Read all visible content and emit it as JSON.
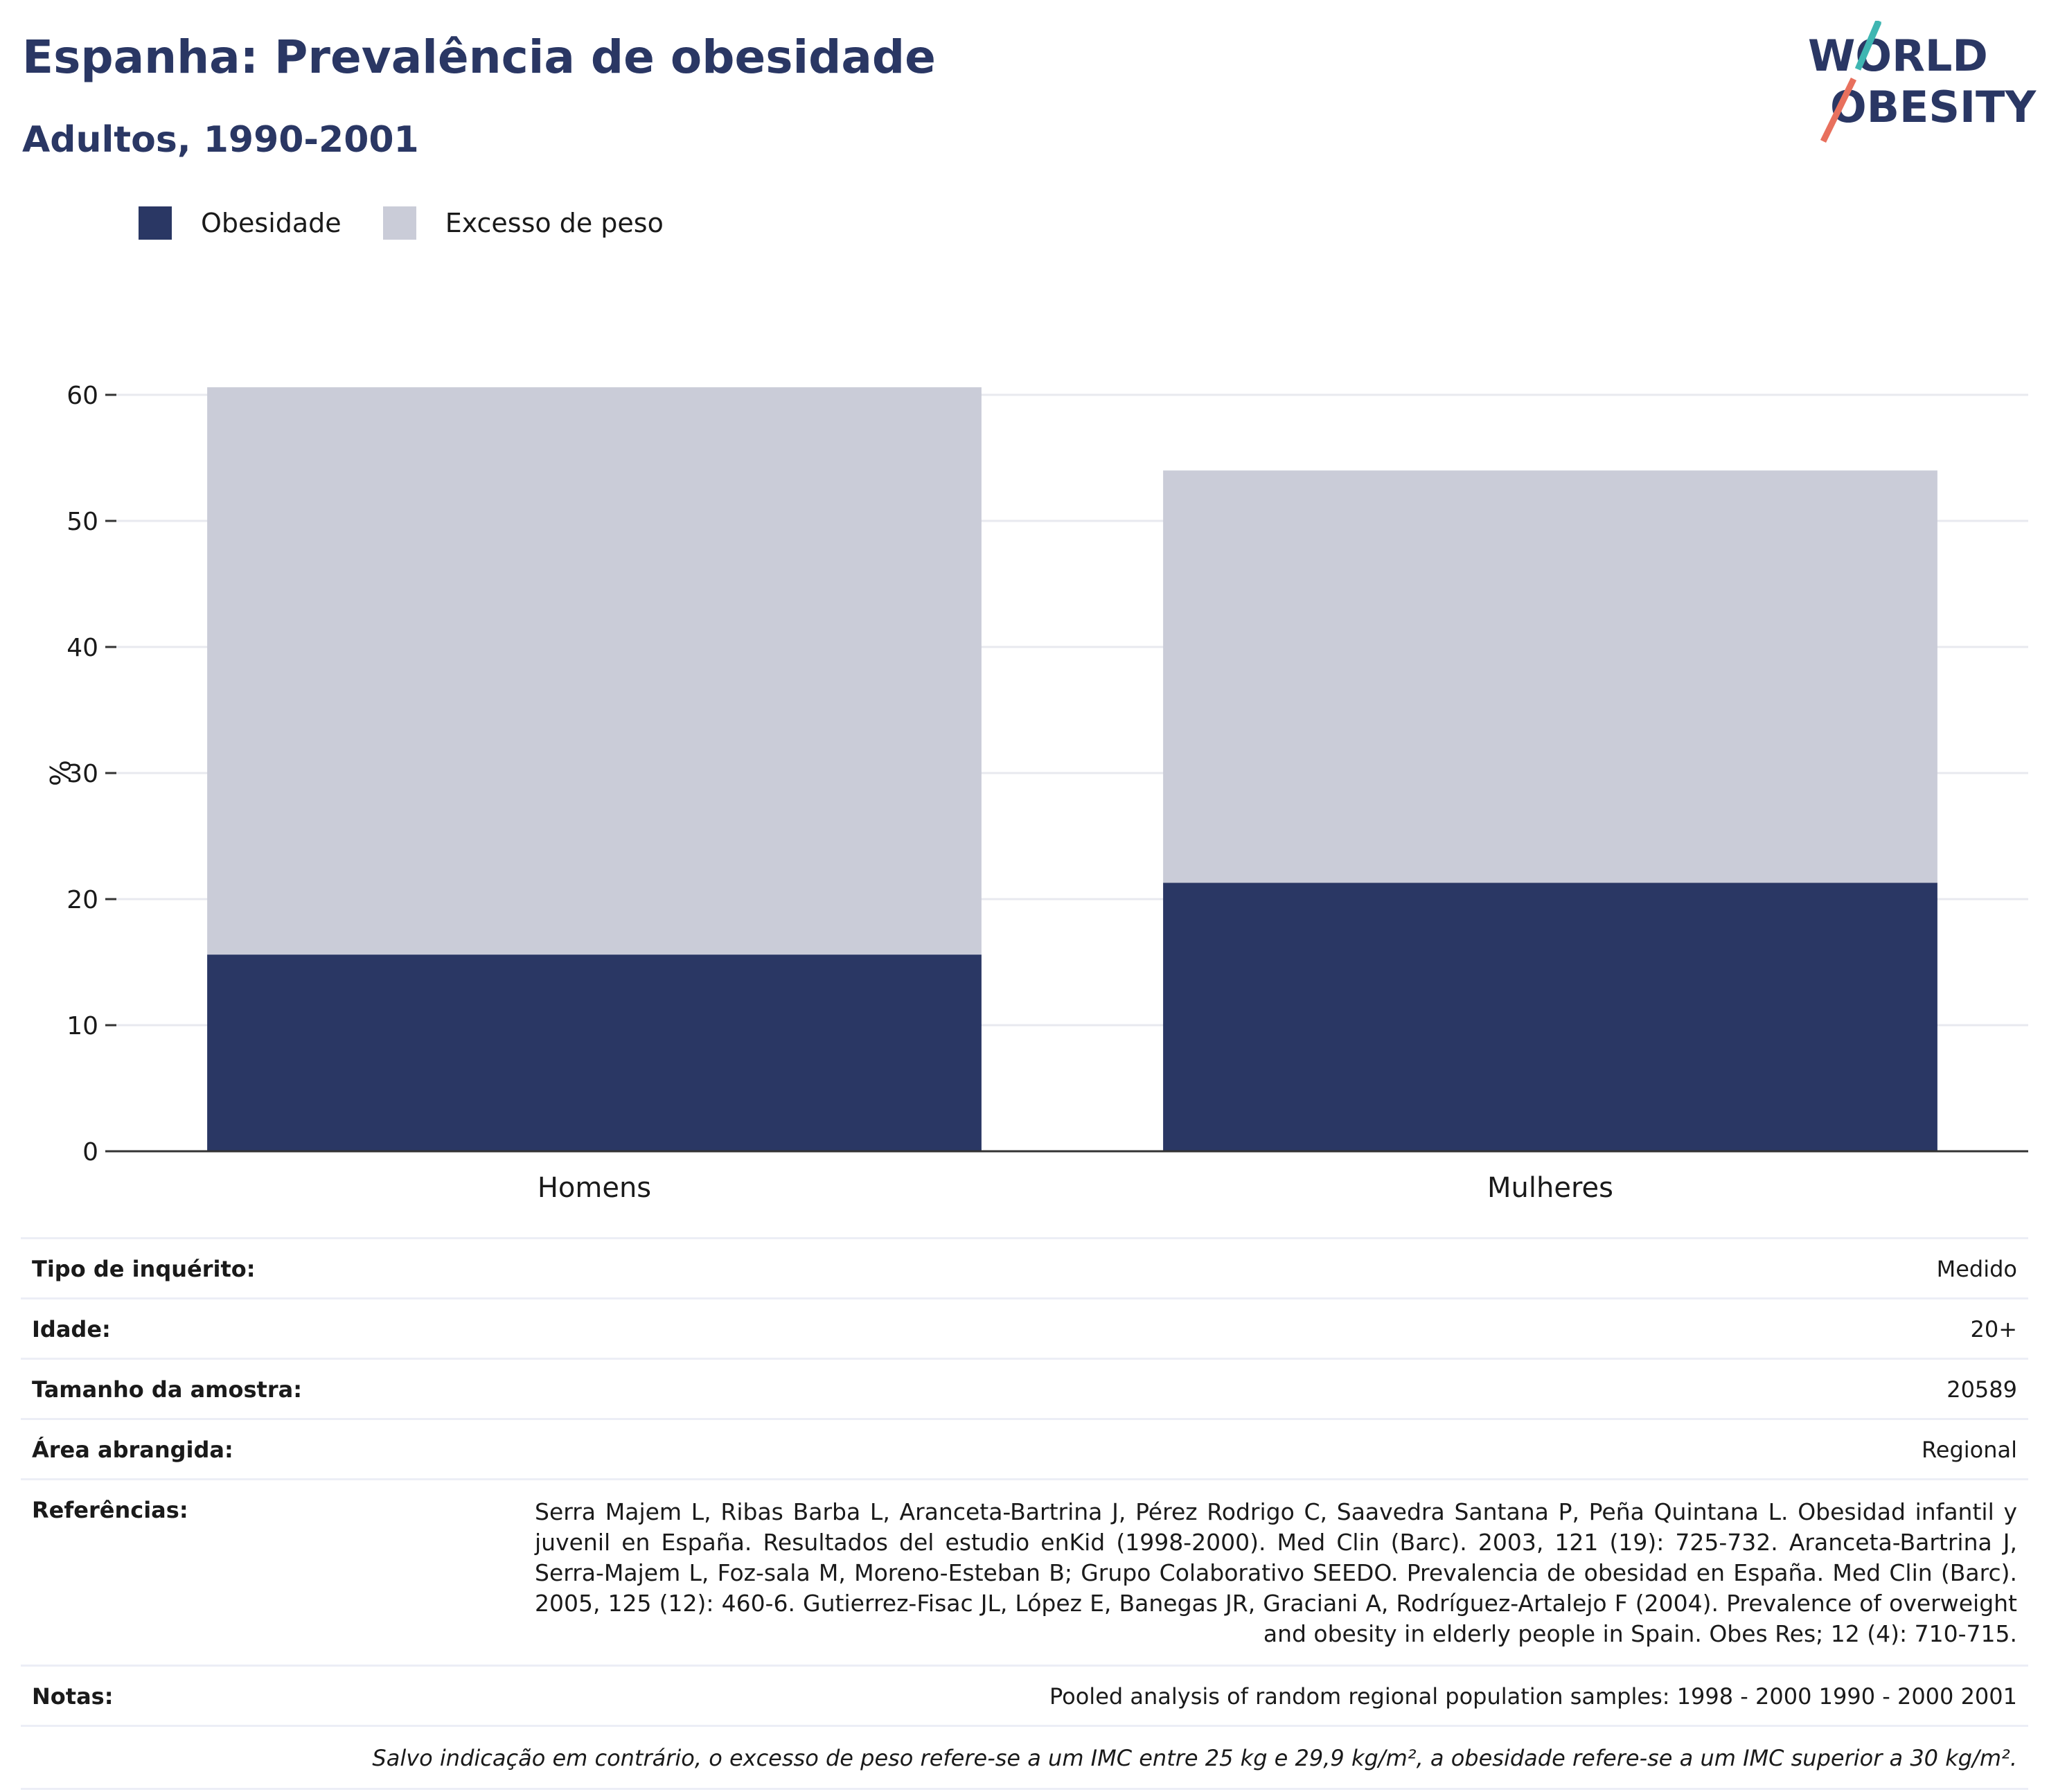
{
  "header": {
    "title": "Espanha: Prevalência de obesidade",
    "subtitle": "Adultos, 1990-2001"
  },
  "logo": {
    "line1": "WORLD",
    "line2": "OBESITY"
  },
  "colors": {
    "obesity": "#2a3764",
    "overweight": "#caccd8",
    "title": "#2a3764",
    "logo_slash_teal": "#3fb6b2",
    "logo_slash_coral": "#e8705d"
  },
  "chart_data": {
    "type": "bar",
    "stacked": true,
    "categories": [
      "Homens",
      "Mulheres"
    ],
    "series": [
      {
        "name": "Obesidade",
        "values": [
          15.6,
          21.3
        ],
        "color": "#2a3764"
      },
      {
        "name": "Excesso de peso",
        "values": [
          45.0,
          32.7
        ],
        "color": "#caccd8"
      }
    ],
    "ylabel": "%",
    "ylim": [
      0,
      63
    ],
    "yticks": [
      0,
      10,
      20,
      30,
      40,
      50,
      60
    ],
    "grid": true,
    "legend_position": "top-left"
  },
  "meta": {
    "survey_type_label": "Tipo de inquérito:",
    "survey_type_value": "Medido",
    "age_label": "Idade:",
    "age_value": "20+",
    "sample_label": "Tamanho da amostra:",
    "sample_value": "20589",
    "area_label": "Área abrangida:",
    "area_value": "Regional",
    "refs_label": "Referências:",
    "refs_value": "Serra Majem L, Ribas Barba L, Aranceta-Bartrina J, Pérez Rodrigo C, Saavedra Santana P, Peña Quintana L. Obesidad infantil y juvenil en España. Resultados del estudio enKid (1998-2000). Med Clin (Barc). 2003, 121 (19): 725-732. Aranceta-Bartrina J, Serra-Majem L, Foz-sala M, Moreno-Esteban B; Grupo Colaborativo SEEDO. Prevalencia de obesidad en España. Med Clin (Barc). 2005, 125 (12): 460-6. Gutierrez-Fisac JL, López E, Banegas JR, Graciani A, Rodríguez-Artalejo F (2004). Prevalence of overweight and obesity in elderly people in Spain. Obes Res; 12 (4): 710-715.",
    "notes_label": "Notas:",
    "notes_value": "Pooled analysis of random regional population samples: 1998 - 2000 1990 - 2000 2001",
    "footnote": "Salvo indicação em contrário, o excesso de peso refere-se a um IMC entre 25 kg e 29,9 kg/m², a obesidade refere-se a um IMC superior a 30 kg/m²."
  }
}
